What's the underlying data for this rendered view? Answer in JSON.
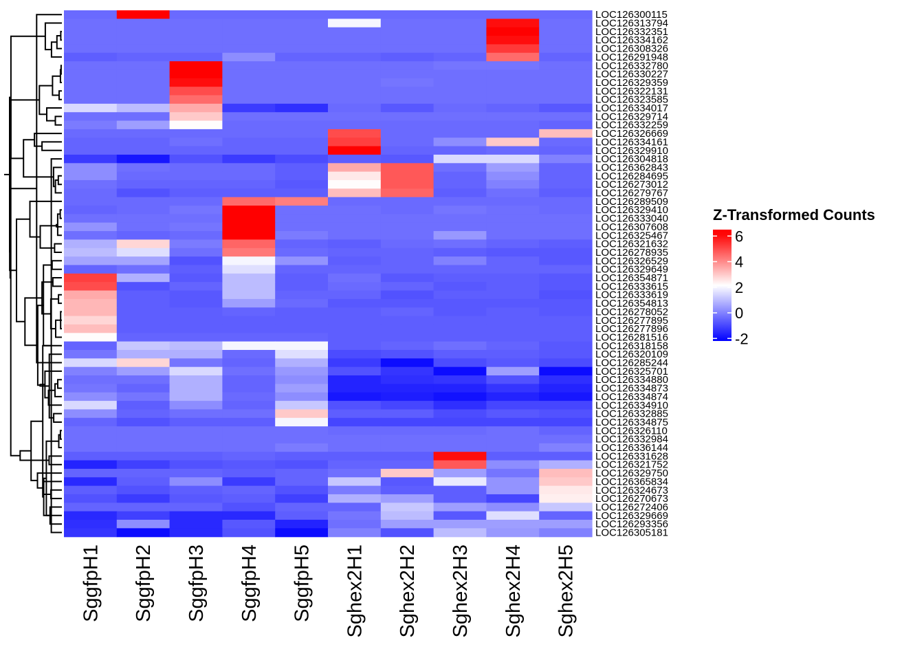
{
  "chart_data": {
    "type": "heatmap",
    "title": "",
    "columns": [
      "SggfpH1",
      "SggfpH2",
      "SggfpH3",
      "SggfpH4",
      "SggfpH5",
      "Sghex2H1",
      "Sghex2H2",
      "Sghex2H3",
      "Sghex2H4",
      "Sghex2H5"
    ],
    "rows": [
      "LOC126300115",
      "LOC126313794",
      "LOC126332351",
      "LOC126334162",
      "LOC126308326",
      "LOC126291948",
      "LOC126332780",
      "LOC126330227",
      "LOC126329359",
      "LOC126322131",
      "LOC126323585",
      "LOC126334017",
      "LOC126329714",
      "LOC126332259",
      "LOC126326669",
      "LOC126334161",
      "LOC126329910",
      "LOC126304818",
      "LOC126362843",
      "LOC126284695",
      "LOC126273012",
      "LOC126279767",
      "LOC126289509",
      "LOC126329410",
      "LOC126333040",
      "LOC126307608",
      "LOC126325467",
      "LOC126321632",
      "LOC126278935",
      "LOC126326529",
      "LOC126329649",
      "LOC126354871",
      "LOC126333615",
      "LOC126333619",
      "LOC126354813",
      "LOC126278052",
      "LOC126277895",
      "LOC126277896",
      "LOC126281516",
      "LOC126318158",
      "LOC126320109",
      "LOC126285244",
      "LOC126325701",
      "LOC126334880",
      "LOC126334873",
      "LOC126334874",
      "LOC126334910",
      "LOC126332885",
      "LOC126334875",
      "LOC126326110",
      "LOC126332984",
      "LOC126336144",
      "LOC126331628",
      "LOC126321752",
      "LOC126329750",
      "LOC126365834",
      "LOC126324673",
      "LOC126270673",
      "LOC126272406",
      "LOC126329669",
      "LOC126293356",
      "LOC126305181"
    ],
    "values": [
      [
        -0.4,
        6.3,
        -0.4,
        -0.4,
        -0.4,
        -0.4,
        -0.4,
        -0.4,
        -0.4,
        -0.4
      ],
      [
        -0.3,
        -0.3,
        -0.3,
        -0.3,
        -0.3,
        2,
        -0.3,
        -0.3,
        6,
        -0.3
      ],
      [
        -0.3,
        -0.3,
        -0.3,
        -0.3,
        -0.3,
        -0.3,
        -0.3,
        -0.3,
        6.2,
        -0.3
      ],
      [
        -0.3,
        -0.3,
        -0.3,
        -0.3,
        -0.3,
        -0.3,
        -0.3,
        -0.3,
        6,
        -0.3
      ],
      [
        -0.3,
        -0.3,
        -0.3,
        -0.3,
        -0.3,
        -0.3,
        -0.3,
        -0.3,
        5.3,
        -0.3
      ],
      [
        -0.6,
        -0.5,
        -0.5,
        0.2,
        -0.5,
        -0.5,
        -0.6,
        -0.5,
        4.5,
        -0.5
      ],
      [
        -0.3,
        -0.3,
        6.2,
        -0.3,
        -0.3,
        -0.3,
        -0.3,
        -0.2,
        -0.2,
        -0.3
      ],
      [
        -0.3,
        -0.3,
        6.2,
        -0.3,
        -0.3,
        -0.3,
        -0.3,
        -0.3,
        -0.3,
        -0.3
      ],
      [
        -0.3,
        -0.3,
        6,
        -0.3,
        -0.3,
        -0.3,
        -0.2,
        -0.3,
        -0.3,
        -0.3
      ],
      [
        -0.3,
        -0.3,
        5,
        -0.3,
        -0.3,
        -0.3,
        -0.3,
        -0.3,
        -0.3,
        -0.3
      ],
      [
        -0.3,
        -0.3,
        4.5,
        -0.3,
        -0.3,
        -0.3,
        -0.3,
        -0.3,
        -0.3,
        -0.3
      ],
      [
        1.5,
        1,
        3.5,
        -1.2,
        -1.4,
        -0.4,
        -0.7,
        -0.4,
        -0.5,
        -0.7
      ],
      [
        -0.3,
        -0.3,
        3,
        -0.3,
        -0.3,
        -0.3,
        -0.3,
        -0.3,
        -0.3,
        -0.3
      ],
      [
        -0.1,
        0.5,
        2.2,
        -0.4,
        -0.4,
        -0.4,
        -0.4,
        -0.4,
        -0.4,
        -0.5
      ],
      [
        -0.4,
        -0.4,
        -0.4,
        -0.4,
        -0.4,
        5,
        -0.4,
        -0.4,
        -0.4,
        3.2
      ],
      [
        -0.5,
        -0.5,
        -0.3,
        -0.5,
        -0.5,
        5.2,
        -0.4,
        0.2,
        3,
        -0.4
      ],
      [
        -0.5,
        -0.5,
        -0.5,
        -0.5,
        -0.5,
        6.2,
        -0.5,
        -0.5,
        -0.4,
        -0.5
      ],
      [
        -1.2,
        -1.8,
        -0.8,
        -1.2,
        -0.9,
        -0.6,
        -0.7,
        1.5,
        1.5,
        0
      ],
      [
        0.2,
        -0.3,
        -0.4,
        -0.4,
        -0.6,
        3.5,
        4.8,
        -0.3,
        0.5,
        -0.5
      ],
      [
        0.2,
        -0.4,
        -0.4,
        -0.4,
        -0.6,
        2.5,
        4.8,
        -0.5,
        0.2,
        -0.5
      ],
      [
        -0.3,
        -0.5,
        -0.5,
        -0.5,
        -0.7,
        2.2,
        4.8,
        -0.5,
        0,
        -0.5
      ],
      [
        -0.4,
        -0.8,
        -0.6,
        -0.6,
        -0.6,
        3.2,
        4.6,
        -0.6,
        -0.3,
        -0.6
      ],
      [
        -0.4,
        -0.4,
        -0.4,
        4.5,
        4.2,
        -0.4,
        -0.4,
        -0.4,
        -0.4,
        -0.4
      ],
      [
        -0.5,
        -0.4,
        -0.2,
        6.2,
        -0.3,
        -0.3,
        -0.4,
        -0.2,
        -0.3,
        -0.4
      ],
      [
        -0.3,
        -0.3,
        -0.3,
        6.2,
        -0.3,
        -0.3,
        -0.3,
        -0.3,
        -0.3,
        -0.3
      ],
      [
        0.3,
        -0.3,
        -0.2,
        6.2,
        -0.3,
        -0.3,
        -0.3,
        -0.3,
        -0.3,
        -0.3
      ],
      [
        -0.3,
        -0.5,
        -0.4,
        6.2,
        -0.1,
        -0.3,
        -0.3,
        0.4,
        -0.3,
        -0.3
      ],
      [
        0.8,
        2.8,
        -0.1,
        4.6,
        -0.5,
        -0.6,
        -0.4,
        -0.3,
        -0.5,
        -0.6
      ],
      [
        1,
        1.6,
        -0.3,
        4.3,
        -0.4,
        -0.5,
        -0.5,
        -0.6,
        -0.7,
        -0.7
      ],
      [
        0.6,
        0.6,
        -0.8,
        2,
        0.3,
        -0.6,
        -0.5,
        0,
        -0.5,
        -0.7
      ],
      [
        -0.5,
        -0.3,
        -0.6,
        1.6,
        -0.5,
        -0.5,
        -0.5,
        -0.5,
        -0.5,
        -0.5
      ],
      [
        5.2,
        0.8,
        -0.7,
        1,
        -0.6,
        -0.3,
        -0.7,
        -0.6,
        -0.6,
        -0.7
      ],
      [
        5,
        -0.8,
        -0.5,
        1,
        -0.6,
        -0.4,
        -0.5,
        -0.7,
        -0.6,
        -0.7
      ],
      [
        3.5,
        -0.6,
        -0.7,
        1,
        -0.5,
        -0.5,
        -0.8,
        -0.6,
        -0.6,
        -0.8
      ],
      [
        3.3,
        -0.6,
        -0.7,
        0.5,
        -0.4,
        -0.7,
        -0.7,
        -0.7,
        -0.7,
        -0.7
      ],
      [
        3.3,
        -0.6,
        -0.6,
        -0.5,
        -0.6,
        -0.6,
        -0.5,
        -0.7,
        -0.6,
        -0.7
      ],
      [
        2.8,
        -0.6,
        -0.6,
        -0.6,
        -0.6,
        -0.6,
        -0.6,
        -0.6,
        -0.6,
        -0.6
      ],
      [
        3.2,
        -0.6,
        -0.6,
        -0.6,
        -0.6,
        -0.6,
        -0.6,
        -0.6,
        -0.6,
        -0.6
      ],
      [
        2.2,
        -0.5,
        -0.5,
        -0.5,
        -0.5,
        -0.6,
        -0.6,
        -0.6,
        -0.6,
        -0.6
      ],
      [
        -0.5,
        1.2,
        1,
        2,
        2,
        -0.6,
        -0.5,
        -0.3,
        -0.5,
        -0.7
      ],
      [
        -0.2,
        0.8,
        0.8,
        -0.4,
        1.6,
        -0.9,
        -0.8,
        -0.6,
        -0.6,
        -0.7
      ],
      [
        1.5,
        2.8,
        -0.2,
        -0.5,
        0.8,
        -1.2,
        -2,
        -0.9,
        -0.7,
        -0.9
      ],
      [
        0,
        0.5,
        1.5,
        -0.3,
        0.4,
        -0.8,
        -1.3,
        -2,
        0.5,
        -2
      ],
      [
        -0.3,
        -0.3,
        0.8,
        -0.5,
        0.2,
        -1.6,
        -1.4,
        -1.3,
        -0.8,
        -1.4
      ],
      [
        -0.2,
        -0.5,
        0.8,
        -0.5,
        0.5,
        -1.6,
        -1.6,
        -1.6,
        -1.3,
        -1.6
      ],
      [
        0.2,
        -0.2,
        0.8,
        -0.4,
        0.2,
        -1.8,
        -1.7,
        -1.9,
        -1.6,
        -1.8
      ],
      [
        1.5,
        -0.6,
        0.2,
        -0.5,
        1.2,
        -0.8,
        -1,
        -1.4,
        -1,
        -1
      ],
      [
        0.2,
        -0.5,
        -0.3,
        -0.3,
        3,
        -0.6,
        -0.6,
        -0.9,
        -0.7,
        -0.8
      ],
      [
        -0.5,
        -0.8,
        -0.6,
        -0.6,
        2,
        -1,
        -1,
        -1,
        -1,
        -1
      ],
      [
        -0.3,
        -0.3,
        -0.3,
        -0.3,
        -0.3,
        -0.4,
        -0.4,
        -0.4,
        -0.3,
        -0.5
      ],
      [
        -0.3,
        -0.3,
        -0.3,
        -0.3,
        -0.3,
        -0.3,
        -0.3,
        -0.3,
        -0.3,
        -0.3
      ],
      [
        -0.3,
        -0.3,
        -0.3,
        -0.3,
        -0.1,
        -0.3,
        -0.3,
        -0.3,
        -0.3,
        0
      ],
      [
        -0.6,
        -0.6,
        -0.6,
        -0.5,
        -0.6,
        -0.6,
        -0.6,
        6,
        -0.6,
        -0.6
      ],
      [
        -1.6,
        -1.1,
        -0.8,
        -0.7,
        -0.8,
        -0.5,
        -0.5,
        4.8,
        0.2,
        0.8
      ],
      [
        -0.5,
        -0.5,
        -0.5,
        -0.6,
        -0.5,
        -0.3,
        3,
        0.5,
        -0.2,
        3.2
      ],
      [
        -1.5,
        -0.6,
        0.2,
        -1.2,
        -0.5,
        1.2,
        -0.7,
        1.8,
        0.3,
        3
      ],
      [
        -0.6,
        -0.8,
        -0.6,
        -0.5,
        -0.8,
        -0.1,
        -0.6,
        -0.6,
        0.3,
        2.5
      ],
      [
        -0.8,
        -1.2,
        -0.7,
        -0.6,
        -1.1,
        0.8,
        0.5,
        -0.6,
        -1,
        2.4
      ],
      [
        -0.5,
        -0.5,
        -0.5,
        -0.8,
        -0.5,
        -0.5,
        1.2,
        0.5,
        0.2,
        1.2
      ],
      [
        -1.5,
        -1.1,
        -1.5,
        -1.5,
        -0.6,
        -0.2,
        1,
        -0.7,
        1.6,
        -0.5
      ],
      [
        -1.4,
        0.2,
        -1.5,
        -0.7,
        -1.6,
        -0.3,
        0.5,
        0.5,
        0.5,
        0.5
      ],
      [
        -1.3,
        -2,
        -1.5,
        -0.8,
        -2,
        0,
        -0.8,
        1,
        0.4,
        0
      ]
    ],
    "legend": {
      "title": "Z-Transformed Counts",
      "ticks": [
        6,
        4,
        2,
        0,
        -2
      ],
      "tick_labels": [
        "6",
        "4",
        "2",
        "0",
        "-2"
      ],
      "range": [
        -2.2,
        6.5
      ]
    },
    "colors": {
      "low": "#0000ff",
      "mid": "#ffffff",
      "high": "#ff0000",
      "mid_value": 2.15
    }
  }
}
